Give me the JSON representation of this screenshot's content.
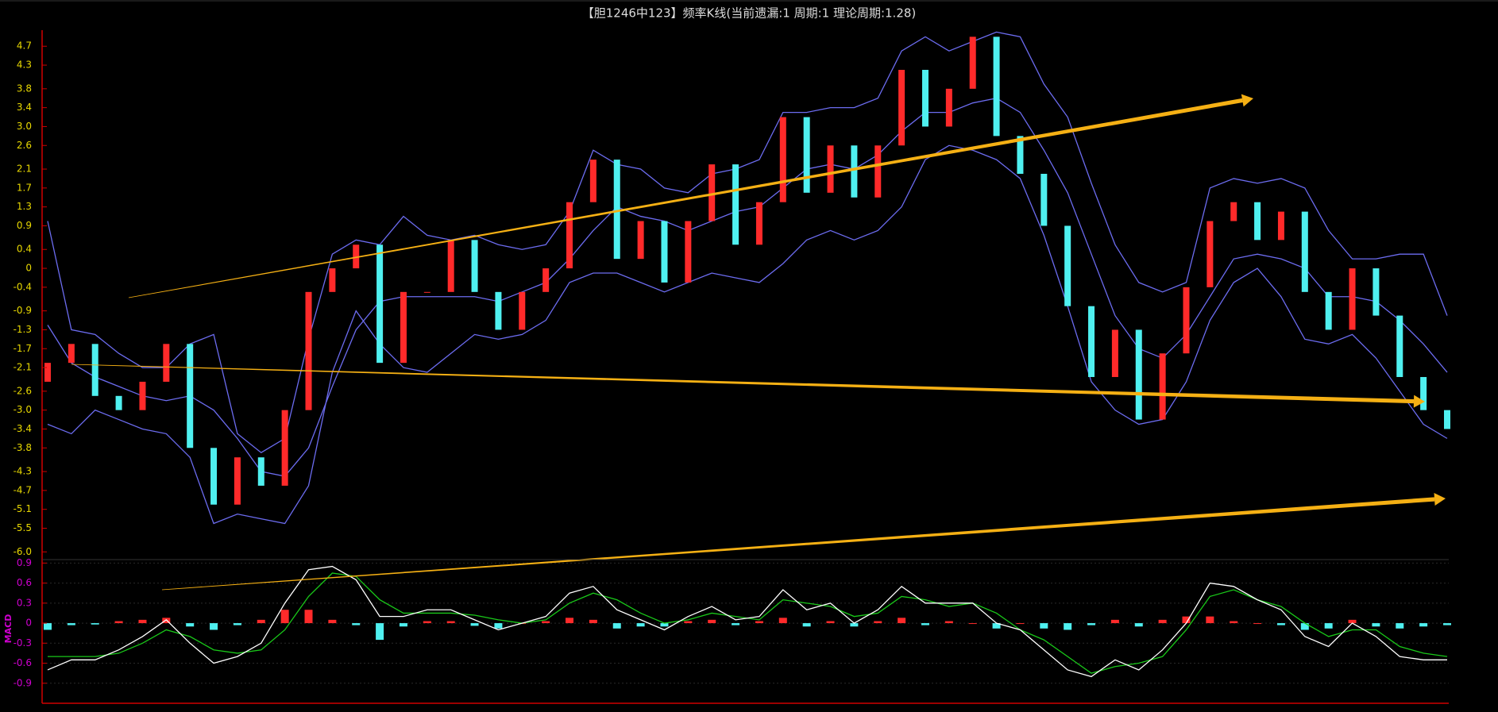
{
  "chart_data": [
    {
      "type": "candlestick",
      "title": "【胆1246中123】频率K线(当前遗漏:1 周期:1 理论周期:1.28)",
      "up_color": "#ff2a2a",
      "down_color": "#4ff0f0",
      "open": [
        -2.4,
        -2.0,
        -1.6,
        -2.7,
        -3.0,
        -2.4,
        -1.6,
        -3.8,
        -5.0,
        -4.0,
        -4.6,
        -3.0,
        -0.5,
        0,
        0.5,
        -2.0,
        -0.5,
        -0.5,
        0.6,
        -0.5,
        -1.3,
        -0.5,
        0,
        1.4,
        2.3,
        0.2,
        1.0,
        -0.3,
        1.0,
        2.2,
        0.5,
        1.4,
        3.2,
        1.6,
        2.6,
        1.5,
        2.6,
        4.2,
        3.0,
        3.8,
        4.9,
        2.8,
        2.0,
        0.9,
        -0.8,
        -2.3,
        -1.3,
        -3.2,
        -1.8,
        -0.4,
        1.0,
        1.4,
        0.6,
        1.2,
        -0.5,
        -1.3,
        0.0,
        -1.0,
        -2.3,
        -3.0
      ],
      "close": [
        -2.0,
        -1.6,
        -2.7,
        -3.0,
        -2.4,
        -1.6,
        -3.8,
        -5.0,
        -4.0,
        -4.6,
        -3.0,
        -0.5,
        0,
        0.5,
        -2.0,
        -0.5,
        -0.5,
        0.6,
        -0.5,
        -1.3,
        -0.5,
        0,
        1.4,
        2.3,
        0.2,
        1.0,
        -0.3,
        1.0,
        2.2,
        0.5,
        1.4,
        3.2,
        1.6,
        2.6,
        1.5,
        2.6,
        4.2,
        3.0,
        3.8,
        4.9,
        2.8,
        2.0,
        0.9,
        -0.8,
        -2.3,
        -1.3,
        -3.2,
        -1.8,
        -0.4,
        1.0,
        1.4,
        0.6,
        1.2,
        -0.5,
        -1.3,
        0.0,
        -1.0,
        -2.3,
        -3.0,
        -3.4
      ],
      "bands": {
        "color": "#6c6cf0",
        "upper": [
          1.0,
          -1.3,
          -1.4,
          -1.8,
          -2.1,
          -2.1,
          -1.6,
          -1.4,
          -3.5,
          -3.9,
          -3.6,
          -1.5,
          0.3,
          0.6,
          0.5,
          1.1,
          0.7,
          0.6,
          0.7,
          0.5,
          0.4,
          0.5,
          1.2,
          2.5,
          2.2,
          2.1,
          1.7,
          1.6,
          2.0,
          2.1,
          2.3,
          3.3,
          3.3,
          3.4,
          3.4,
          3.6,
          4.6,
          4.9,
          4.6,
          4.8,
          5.0,
          4.9,
          3.9,
          3.2,
          1.8,
          0.5,
          -0.3,
          -0.5,
          -0.3,
          1.7,
          1.9,
          1.8,
          1.9,
          1.7,
          0.8,
          0.2,
          0.2,
          0.3,
          0.3,
          -1.0
        ],
        "mid": [
          -1.2,
          -2.0,
          -2.3,
          -2.5,
          -2.7,
          -2.8,
          -2.7,
          -3.0,
          -3.6,
          -4.3,
          -4.4,
          -3.8,
          -2.5,
          -1.3,
          -0.7,
          -0.6,
          -0.6,
          -0.6,
          -0.6,
          -0.7,
          -0.5,
          -0.3,
          0.2,
          0.8,
          1.3,
          1.1,
          1.0,
          0.8,
          1.0,
          1.2,
          1.3,
          1.7,
          2.1,
          2.2,
          2.1,
          2.4,
          2.9,
          3.3,
          3.3,
          3.5,
          3.6,
          3.3,
          2.5,
          1.6,
          0.3,
          -1.0,
          -1.7,
          -1.9,
          -1.4,
          -0.6,
          0.2,
          0.3,
          0.2,
          0.0,
          -0.6,
          -0.6,
          -0.7,
          -1.1,
          -1.6,
          -2.2
        ],
        "lower": [
          -3.3,
          -3.5,
          -3.0,
          -3.2,
          -3.4,
          -3.5,
          -4.0,
          -5.4,
          -5.2,
          -5.3,
          -5.4,
          -4.6,
          -2.2,
          -0.9,
          -1.6,
          -2.1,
          -2.2,
          -1.8,
          -1.4,
          -1.5,
          -1.4,
          -1.1,
          -0.3,
          -0.1,
          -0.1,
          -0.3,
          -0.5,
          -0.3,
          -0.1,
          -0.2,
          -0.3,
          0.1,
          0.6,
          0.8,
          0.6,
          0.8,
          1.3,
          2.3,
          2.6,
          2.5,
          2.3,
          1.9,
          0.7,
          -0.8,
          -2.4,
          -3.0,
          -3.3,
          -3.2,
          -2.4,
          -1.1,
          -0.3,
          0.0,
          -0.6,
          -1.5,
          -1.6,
          -1.4,
          -1.9,
          -2.6,
          -3.3,
          -3.6
        ]
      },
      "ylim": [
        -6.13,
        5.04
      ],
      "yticks": [
        4.7,
        4.3,
        3.8,
        3.4,
        {
          "value": 3,
          "label": "3.0"
        },
        2.6,
        2.1,
        1.7,
        1.3,
        0.9,
        0.4,
        0,
        -0.4,
        -0.9,
        -1.3,
        -1.7,
        -2.1,
        -2.6,
        {
          "value": -3,
          "label": "-3.0"
        },
        -3.4,
        -3.8,
        -4.3,
        -4.7,
        -5.1,
        -5.5,
        {
          "value": -6,
          "label": "-6.0"
        }
      ],
      "tick_color": "#e8d800"
    },
    {
      "type": "macd",
      "label": "MACD",
      "dif_color": "#ffffff",
      "dea_color": "#19c819",
      "up_color": "#ff2a2a",
      "down_color": "#4ff0f0",
      "dif": [
        -0.7,
        -0.55,
        -0.55,
        -0.4,
        -0.2,
        0.05,
        -0.3,
        -0.6,
        -0.5,
        -0.3,
        0.3,
        0.8,
        0.85,
        0.65,
        0.1,
        0.1,
        0.2,
        0.2,
        0.05,
        -0.1,
        0.0,
        0.1,
        0.45,
        0.55,
        0.2,
        0.05,
        -0.1,
        0.1,
        0.25,
        0.05,
        0.1,
        0.5,
        0.2,
        0.3,
        0.0,
        0.2,
        0.55,
        0.3,
        0.3,
        0.3,
        0.0,
        -0.1,
        -0.4,
        -0.7,
        -0.8,
        -0.55,
        -0.7,
        -0.4,
        0.0,
        0.6,
        0.55,
        0.35,
        0.2,
        -0.2,
        -0.35,
        0.0,
        -0.2,
        -0.5,
        -0.55,
        -0.55
      ],
      "dea": [
        -0.5,
        -0.5,
        -0.5,
        -0.45,
        -0.3,
        -0.1,
        -0.2,
        -0.4,
        -0.45,
        -0.4,
        -0.1,
        0.4,
        0.75,
        0.7,
        0.35,
        0.15,
        0.15,
        0.15,
        0.12,
        0.05,
        0.0,
        0.05,
        0.3,
        0.45,
        0.35,
        0.15,
        0.0,
        0.05,
        0.15,
        0.1,
        0.05,
        0.35,
        0.3,
        0.25,
        0.1,
        0.15,
        0.4,
        0.35,
        0.25,
        0.3,
        0.15,
        -0.1,
        -0.25,
        -0.5,
        -0.75,
        -0.65,
        -0.6,
        -0.5,
        -0.1,
        0.4,
        0.5,
        0.35,
        0.25,
        0.0,
        -0.2,
        -0.1,
        -0.1,
        -0.35,
        -0.45,
        -0.5
      ],
      "hist": [
        -0.1,
        -0.03,
        -0.02,
        0.03,
        0.05,
        0.08,
        -0.05,
        -0.1,
        -0.03,
        0.05,
        0.2,
        0.2,
        0.05,
        -0.03,
        -0.25,
        -0.05,
        0.03,
        0.03,
        -0.04,
        -0.08,
        0.0,
        0.03,
        0.08,
        0.05,
        -0.08,
        -0.05,
        -0.05,
        0.03,
        0.05,
        -0.03,
        0.03,
        0.08,
        -0.05,
        0.03,
        -0.05,
        0.03,
        0.08,
        -0.03,
        0.03,
        0.0,
        -0.08,
        0.0,
        -0.08,
        -0.1,
        -0.03,
        0.05,
        -0.05,
        0.05,
        0.1,
        0.1,
        0.03,
        0.0,
        -0.03,
        -0.1,
        -0.08,
        0.05,
        -0.05,
        -0.08,
        -0.05,
        -0.03
      ],
      "ylim": [
        -1.2,
        0.94
      ],
      "yticks": [
        0.9,
        0.6,
        0.3,
        0,
        -0.3,
        -0.6,
        -0.9
      ],
      "tick_color": "#d000d0",
      "grid": true
    }
  ]
}
